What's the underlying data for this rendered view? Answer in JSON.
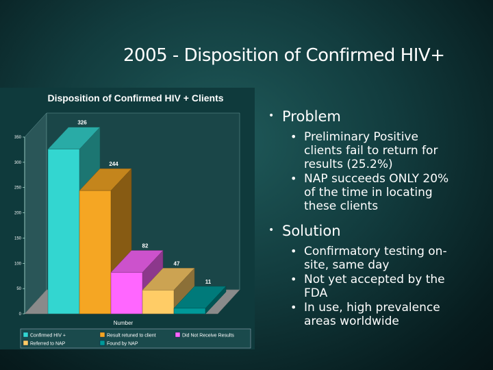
{
  "slide": {
    "title": "2005 - Disposition of Confirmed HIV+"
  },
  "chart_data": {
    "type": "bar",
    "title": "Disposition of Confirmed HIV +  Clients",
    "xlabel": "Number",
    "ylabel": "",
    "ylim": [
      0,
      350
    ],
    "yticks": [
      0,
      50,
      100,
      150,
      200,
      250,
      300,
      350
    ],
    "categories": [
      "Confirmed HIV +",
      "Result retuned to client",
      "Did Not Receive Results",
      "Referred to NAP",
      "Found by NAP"
    ],
    "values": [
      326,
      244,
      82,
      47,
      11
    ],
    "colors": [
      "#33d6d0",
      "#f5a623",
      "#ff66ff",
      "#ffcc66",
      "#009999"
    ],
    "grid": false,
    "legend": "bottom"
  },
  "bullets": [
    {
      "label": "Problem",
      "items": [
        [
          "Preliminary Positive",
          "clients fail to return for",
          "results (25.2%)"
        ],
        [
          "NAP succeeds ONLY 20%",
          "of the time in locating",
          "these clients"
        ]
      ]
    },
    {
      "label": "Solution",
      "items": [
        [
          "Confirmatory testing on-",
          "site, same day"
        ],
        [
          "Not yet accepted by the",
          "FDA"
        ],
        [
          "In use, high prevalence",
          "areas worldwide"
        ]
      ]
    }
  ]
}
